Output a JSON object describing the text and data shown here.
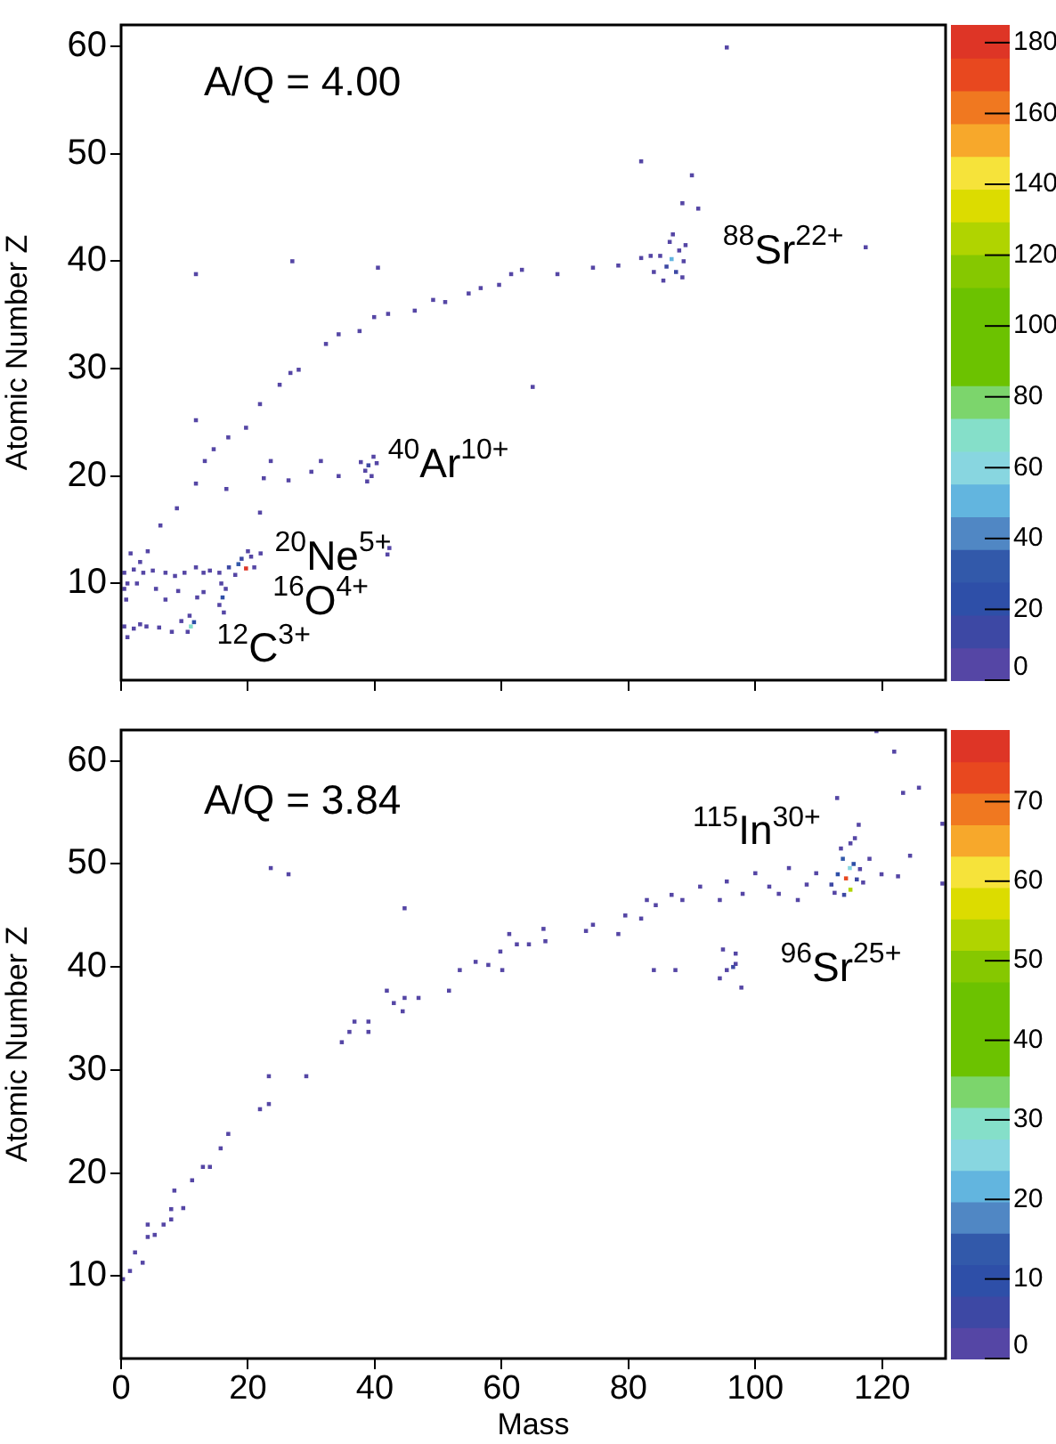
{
  "chart_data": [
    {
      "type": "scatter",
      "ylabel": "Atomic Number Z",
      "xlim": [
        0,
        130
      ],
      "xticks": [
        0,
        20,
        40,
        60,
        80,
        100,
        120
      ],
      "ylim": [
        1,
        62
      ],
      "yticks": [
        10,
        20,
        30,
        40,
        50,
        60
      ],
      "tick_labels": "y",
      "marker": "square",
      "grid": false,
      "clim": [
        0,
        185
      ],
      "cticks": [
        0,
        20,
        40,
        60,
        80,
        100,
        120,
        140,
        160,
        180
      ],
      "annotations": [
        "A/Q = 4.00",
        "$^{88}$Sr$^{22+}$",
        "$^{40}$Ar$^{10+}$",
        "$^{20}$Ne$^{5+}$",
        "$^{16}$O$^{4+}$",
        "$^{12}$C$^{3+}$"
      ],
      "x": [
        0.5,
        2,
        4,
        6,
        8,
        9.5,
        10.5,
        11,
        11.5,
        10.8,
        1,
        3,
        0.5,
        2,
        3.5,
        5,
        7,
        8.5,
        10,
        11.8,
        13,
        14,
        15.5,
        17,
        18.5,
        19.7,
        19,
        20.5,
        21,
        20,
        22,
        18,
        0.5,
        0.8,
        1.5,
        2.5,
        3,
        5.5,
        7,
        9,
        12,
        13,
        15.5,
        16,
        16.5,
        15.8,
        16.2,
        1,
        4.2,
        6.2,
        8.8,
        11.8,
        13.2,
        14.6,
        16.9,
        19.7,
        11.8,
        21.9,
        25,
        26.7,
        28,
        32.3,
        34.3,
        37.6,
        39.9,
        42.1,
        46.3,
        49.2,
        51.1,
        54.8,
        56.7,
        59.6,
        61.5,
        63.2,
        68.8,
        74.4,
        78.4,
        82,
        11.8,
        27,
        40.5,
        31.5,
        34.3,
        30,
        23.6,
        26.4,
        22.5,
        16.6,
        21.9,
        38.5,
        39,
        39.5,
        38.8,
        39.8,
        40.3,
        37.8,
        42,
        42.3,
        84,
        85,
        86,
        86.8,
        87.5,
        88,
        86.5,
        85.5,
        88.7,
        87,
        83.5,
        88.5,
        89,
        82,
        90,
        88.5,
        91,
        95.5,
        117.4,
        64.9
      ],
      "values": [
        6,
        5.8,
        6,
        5.9,
        5.5,
        6.5,
        5.5,
        6,
        6.4,
        7,
        5,
        6.2,
        11,
        11.3,
        11,
        11.2,
        11,
        10.7,
        11,
        11.5,
        11,
        11.2,
        11,
        11.5,
        11.8,
        11.4,
        12.3,
        12.5,
        11.5,
        13,
        12.8,
        10.8,
        9.5,
        8.5,
        12.8,
        10,
        12,
        9.5,
        8.5,
        9.3,
        8.7,
        9.2,
        8,
        8.7,
        9.5,
        10,
        7.3,
        10,
        13,
        15.4,
        17,
        19.3,
        21.4,
        22.5,
        23.6,
        24.5,
        25.2,
        26.7,
        28.5,
        29.6,
        29.9,
        32.3,
        33.2,
        33.5,
        34.8,
        35.1,
        35.4,
        36.4,
        36.2,
        37,
        37.5,
        37.8,
        38.8,
        39.2,
        38.8,
        39.4,
        39.6,
        40.3,
        38.8,
        40,
        39.4,
        21.4,
        20,
        20.4,
        21.4,
        19.6,
        19.8,
        18.8,
        16.6,
        20.5,
        21,
        20,
        19.5,
        21.8,
        21.2,
        21.3,
        12.7,
        13.3,
        39,
        40.5,
        39.5,
        40.2,
        39,
        41,
        41.8,
        38.2,
        40,
        42.5,
        40.5,
        38.5,
        41.5,
        49.3,
        48,
        45.4,
        44.9,
        59.9,
        41.3,
        28.3
      ],
      "cvalues": [
        2,
        1,
        1,
        1,
        1,
        3,
        8,
        70,
        25,
        4,
        1,
        1,
        1,
        2,
        1,
        1,
        2,
        1,
        1,
        3,
        2,
        2,
        4,
        10,
        30,
        180,
        15,
        8,
        6,
        3,
        1,
        5,
        1,
        1,
        1,
        1,
        1,
        1,
        1,
        1,
        1,
        1,
        4,
        20,
        6,
        2,
        2,
        1,
        1,
        1,
        1,
        1,
        1,
        1,
        1,
        1,
        1,
        1,
        1,
        1,
        1,
        1,
        1,
        1,
        1,
        1,
        1,
        1,
        1,
        1,
        1,
        1,
        1,
        1,
        1,
        1,
        1,
        1,
        1,
        1,
        1,
        1,
        1,
        1,
        1,
        1,
        1,
        1,
        1,
        8,
        14,
        5,
        3,
        3,
        2,
        1,
        1,
        1,
        6,
        8,
        12,
        50,
        10,
        9,
        5,
        4,
        3,
        2,
        2,
        2,
        1,
        1,
        1,
        1,
        1,
        1,
        1,
        1
      ]
    },
    {
      "type": "scatter",
      "xlabel": "Mass",
      "ylabel": "Atomic Number Z",
      "xlim": [
        0,
        130
      ],
      "xticks": [
        0,
        20,
        40,
        60,
        80,
        100,
        120
      ],
      "ylim": [
        2,
        63
      ],
      "yticks": [
        10,
        20,
        30,
        40,
        50,
        60
      ],
      "marker": "square",
      "grid": false,
      "clim": [
        0,
        79
      ],
      "cticks": [
        0,
        10,
        20,
        30,
        40,
        50,
        60,
        70
      ],
      "annotations": [
        "A/Q = 3.84",
        "$^{115}$In$^{30+}$",
        "$^{96}$Sr$^{25+}$"
      ],
      "x": [
        0.3,
        1.4,
        2.2,
        3.4,
        4.2,
        4.2,
        5.3,
        6.7,
        7.9,
        7.9,
        8.4,
        9.8,
        11.2,
        12.9,
        14,
        15.7,
        16.9,
        21.9,
        23.3,
        23.3,
        29.2,
        23.6,
        26.4,
        34.8,
        36,
        36.8,
        39,
        39,
        41.9,
        43,
        44.4,
        44.7,
        46.9,
        44.7,
        51.7,
        53.4,
        55.9,
        57.9,
        59.8,
        60.1,
        61.2,
        62.4,
        64.3,
        66.6,
        66.9,
        73.3,
        74.4,
        78.4,
        79.5,
        82,
        82.9,
        84.3,
        86.8,
        88.5,
        91.3,
        94.4,
        95.5,
        98,
        100,
        102.2,
        103.7,
        105.3,
        106.7,
        108.1,
        109.6,
        112,
        113,
        113.8,
        114.3,
        114.9,
        115,
        115.5,
        116,
        114,
        116.5,
        112.5,
        117,
        113.5,
        115,
        115.7,
        116.3,
        112.9,
        119.1,
        121.9,
        123.3,
        125.8,
        129.5,
        129.5,
        124.4,
        122.5,
        119.9,
        118,
        96.9,
        96.9,
        94.9,
        94.4,
        97.8,
        95.5,
        96.5,
        84,
        87.4
      ],
      "values": [
        9.7,
        10.5,
        12.3,
        11.3,
        15,
        13.8,
        14,
        15,
        15.5,
        16.5,
        18.3,
        16.6,
        19.3,
        20.6,
        20.6,
        22.4,
        23.8,
        26.2,
        26.7,
        29.4,
        29.4,
        49.6,
        49,
        32.7,
        33.7,
        34.7,
        33.7,
        34.7,
        37.7,
        36.5,
        35.7,
        37,
        37,
        45.7,
        37.7,
        39.7,
        40.5,
        40.2,
        41.5,
        39.7,
        43.2,
        42.2,
        42.2,
        43.7,
        42.5,
        43.5,
        44.1,
        43.2,
        45,
        44.7,
        46.5,
        46,
        47,
        46.5,
        47.8,
        46.5,
        48.3,
        47.1,
        49.1,
        47.8,
        47.1,
        49.6,
        46.5,
        48,
        49.1,
        48,
        49,
        50.5,
        48.6,
        49.6,
        47.5,
        50,
        48.5,
        47,
        49.5,
        47.2,
        48.2,
        51.5,
        52,
        52.5,
        53.8,
        56.4,
        62.9,
        60.9,
        56.9,
        57.4,
        53.9,
        48.1,
        50.8,
        48.8,
        49,
        50.5,
        40.3,
        41.3,
        41.7,
        38.9,
        38,
        39.7,
        40,
        39.7,
        39.7
      ],
      "cvalues": [
        1,
        1,
        1,
        1,
        1,
        1,
        1,
        1,
        1,
        1,
        1,
        1,
        1,
        1,
        1,
        1,
        1,
        1,
        1,
        1,
        1,
        1,
        1,
        1,
        1,
        1,
        1,
        1,
        1,
        1,
        1,
        1,
        1,
        1,
        1,
        1,
        1,
        1,
        1,
        1,
        1,
        1,
        1,
        1,
        1,
        1,
        1,
        1,
        1,
        1,
        1,
        1,
        1,
        1,
        1,
        1,
        1,
        1,
        1,
        1,
        1,
        1,
        1,
        2,
        2,
        6,
        10,
        15,
        75,
        25,
        55,
        8,
        6,
        5,
        3,
        3,
        2,
        3,
        2,
        1,
        1,
        1,
        1,
        1,
        1,
        1,
        1,
        1,
        1,
        1,
        1,
        1,
        3,
        2,
        1,
        1,
        1,
        2,
        6,
        1,
        1
      ]
    }
  ]
}
